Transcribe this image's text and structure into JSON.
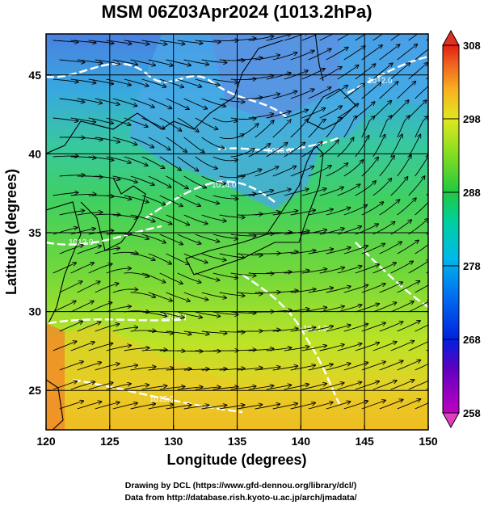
{
  "title": "MSM 06Z03Apr2024 (1013.2hPa)",
  "map": {
    "xlabel": "Longitude (degrees)",
    "ylabel": "Latitude  (degrees)",
    "lon_range": [
      120,
      150
    ],
    "lat_range": [
      22.5,
      47.6
    ],
    "lon_ticks": [
      "120",
      "125",
      "130",
      "135",
      "140",
      "145",
      "150"
    ],
    "lat_ticks": [
      "25",
      "30",
      "35",
      "40",
      "45"
    ],
    "grid": true
  },
  "colorbar": {
    "min": 258,
    "max": 308,
    "ticks": [
      "258",
      "268",
      "278",
      "288",
      "298",
      "308"
    ]
  },
  "contour_labels": [
    "1012.0",
    "1013.0",
    "1014.0",
    "1012.0",
    "1013.0",
    "1014.0",
    "1015.0"
  ],
  "credits": {
    "line1": "Drawing by DCL (https://www.gfd-dennou.org/library/dcl/)",
    "line2": "Data from http://database.rish.kyoto-u.ac.jp/arch/jmadata/"
  }
}
